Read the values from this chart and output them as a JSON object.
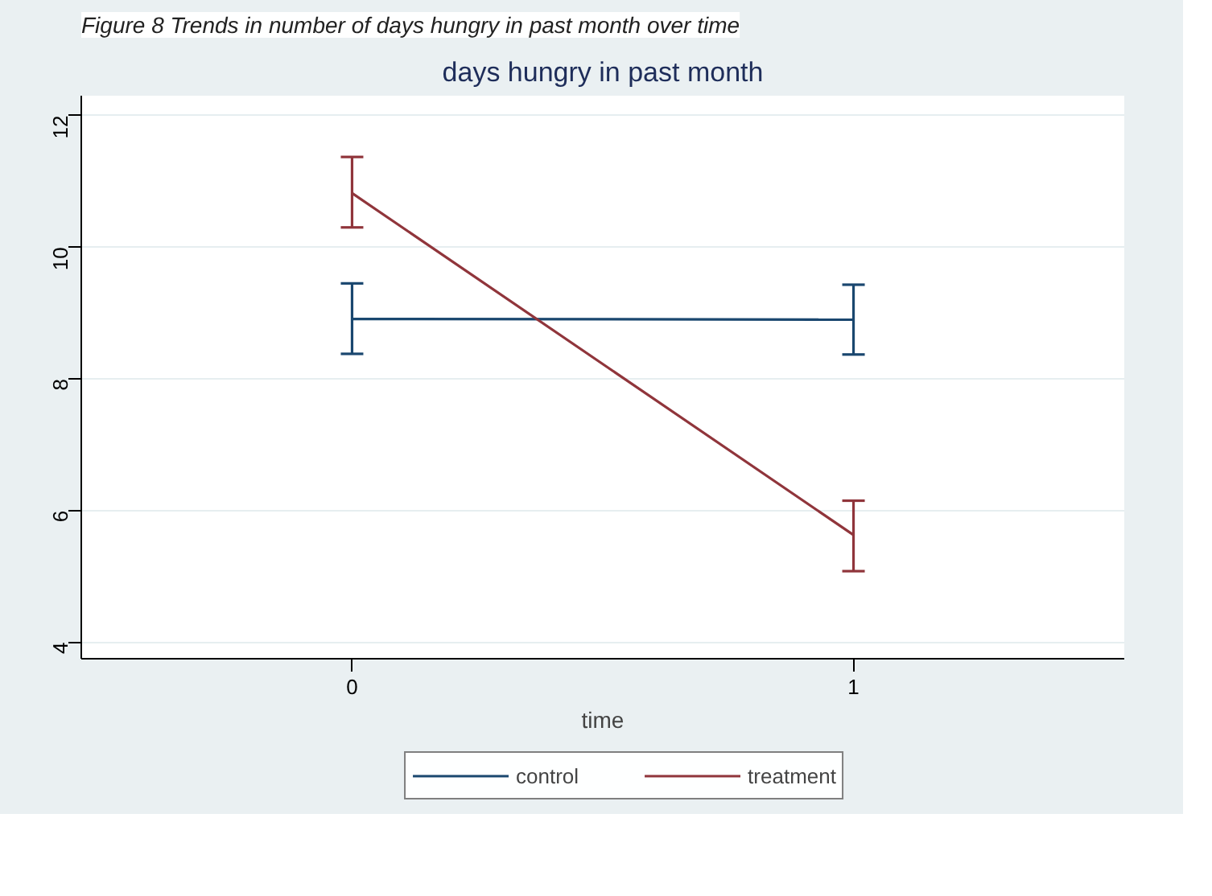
{
  "chart_data": {
    "type": "line",
    "title": "days hungry in past month",
    "xlabel": "time",
    "annotations": [
      "Figure 8 Trends in number of days hungry in past month over time"
    ],
    "x": [
      0,
      1
    ],
    "series": [
      {
        "name": "control",
        "color": "#1a476f",
        "values": [
          8.91,
          8.9
        ],
        "errors": [
          [
            8.38,
            9.45
          ],
          [
            8.37,
            9.43
          ]
        ]
      },
      {
        "name": "treatment",
        "color": "#90353b",
        "values": [
          10.82,
          5.63
        ],
        "errors": [
          [
            10.3,
            11.37
          ],
          [
            5.08,
            6.15
          ]
        ]
      }
    ],
    "xlim": [
      -0.54,
      1.54
    ],
    "xticks": [
      0,
      1
    ],
    "ylim": [
      3.75,
      12.3
    ],
    "yticks": [
      4,
      6,
      8,
      10,
      12
    ],
    "grid": "y",
    "legend": "bottom",
    "marker": "none",
    "line_style": "solid"
  }
}
